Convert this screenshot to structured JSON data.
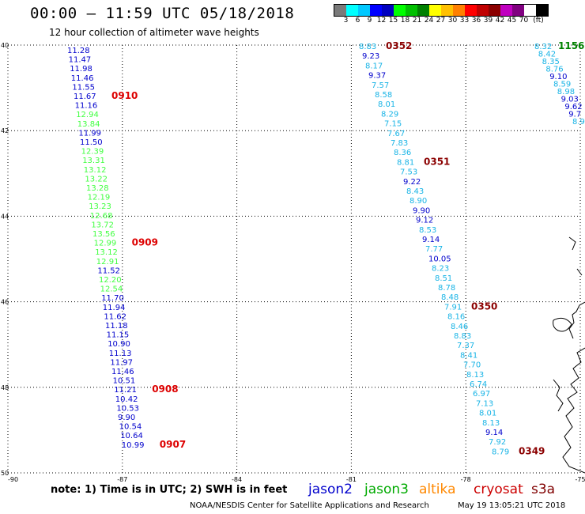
{
  "header": {
    "title": "00:00 – 11:59 UTC 05/18/2018",
    "subtitle": "12 hour collection of altimeter wave heights",
    "units": "(ft)"
  },
  "colorbar": {
    "colors": [
      "#7a7a7a",
      "#00ffff",
      "#00c8ff",
      "#0000ff",
      "#0000c0",
      "#00ff00",
      "#00c000",
      "#008000",
      "#ffff00",
      "#ffc000",
      "#ff8000",
      "#ff0000",
      "#c00000",
      "#8b0000",
      "#c000c0",
      "#800080",
      "#ffffff",
      "#000000"
    ],
    "labels": [
      "3",
      "6",
      "9",
      "12",
      "15",
      "18",
      "21",
      "24",
      "27",
      "30",
      "33",
      "36",
      "39",
      "42",
      "45",
      "70"
    ]
  },
  "map": {
    "lon_ticks": [
      "-90",
      "-87",
      "-84",
      "-81",
      "-78",
      "-75"
    ],
    "lat_ticks": [
      "40",
      "42",
      "44",
      "46",
      "48",
      "50"
    ],
    "satellite_colors": {
      "jason2": "#0000cc",
      "jason3": "#00aa00",
      "altika": "#ff8800",
      "cryosat": "#cc0000",
      "s3a": "#800000",
      "light": "#40ff40",
      "cyan": "#19b4e6"
    },
    "tracks": [
      {
        "name": "west-track",
        "points": [
          {
            "v": "11.28",
            "c": "#0000cc"
          },
          {
            "v": "11.47",
            "c": "#0000cc"
          },
          {
            "v": "11.98",
            "c": "#0000cc"
          },
          {
            "v": "11.46",
            "c": "#0000cc"
          },
          {
            "v": "11.55",
            "c": "#0000cc"
          },
          {
            "v": "11.67",
            "c": "#0000cc"
          },
          {
            "v": "11.16",
            "c": "#0000cc"
          },
          {
            "v": "12.94",
            "c": "#40ff40"
          },
          {
            "v": "13.84",
            "c": "#40ff40"
          },
          {
            "v": "11.99",
            "c": "#0000cc"
          },
          {
            "v": "11.50",
            "c": "#0000cc"
          },
          {
            "v": "12.39",
            "c": "#40ff40"
          },
          {
            "v": "13.31",
            "c": "#40ff40"
          },
          {
            "v": "13.12",
            "c": "#40ff40"
          },
          {
            "v": "13.22",
            "c": "#40ff40"
          },
          {
            "v": "13.28",
            "c": "#40ff40"
          },
          {
            "v": "12.19",
            "c": "#40ff40"
          },
          {
            "v": "13.23",
            "c": "#40ff40"
          },
          {
            "v": "12.68",
            "c": "#40ff40"
          },
          {
            "v": "13.72",
            "c": "#40ff40"
          },
          {
            "v": "13.56",
            "c": "#40ff40"
          },
          {
            "v": "12.99",
            "c": "#40ff40"
          },
          {
            "v": "13.12",
            "c": "#40ff40"
          },
          {
            "v": "12.91",
            "c": "#40ff40"
          },
          {
            "v": "11.52",
            "c": "#0000cc"
          },
          {
            "v": "12.20",
            "c": "#40ff40"
          },
          {
            "v": "12.54",
            "c": "#40ff40"
          },
          {
            "v": "11.70",
            "c": "#0000cc"
          },
          {
            "v": "11.94",
            "c": "#0000cc"
          },
          {
            "v": "11.62",
            "c": "#0000cc"
          },
          {
            "v": "11.18",
            "c": "#0000cc"
          },
          {
            "v": "11.15",
            "c": "#0000cc"
          },
          {
            "v": "10.90",
            "c": "#0000cc"
          },
          {
            "v": "11.13",
            "c": "#0000cc"
          },
          {
            "v": "11.97",
            "c": "#0000cc"
          },
          {
            "v": "11.46",
            "c": "#0000cc"
          },
          {
            "v": "10.51",
            "c": "#0000cc"
          },
          {
            "v": "11.21",
            "c": "#0000cc"
          },
          {
            "v": "10.42",
            "c": "#0000cc"
          },
          {
            "v": "10.53",
            "c": "#0000cc"
          },
          {
            "v": "9.90",
            "c": "#0000cc"
          },
          {
            "v": "10.54",
            "c": "#0000cc"
          },
          {
            "v": "10.64",
            "c": "#0000cc"
          },
          {
            "v": "10.99",
            "c": "#0000cc"
          }
        ],
        "time_labels": [
          {
            "t": "0910",
            "after": 5
          },
          {
            "t": "0909",
            "after": 21
          },
          {
            "t": "0908",
            "after": 37
          },
          {
            "t": "0907",
            "after": 43
          }
        ]
      },
      {
        "name": "east-track",
        "points": [
          {
            "v": "8.83",
            "c": "#19b4e6"
          },
          {
            "v": "9.23",
            "c": "#0000cc"
          },
          {
            "v": "8.17",
            "c": "#19b4e6"
          },
          {
            "v": "9.37",
            "c": "#0000cc"
          },
          {
            "v": "7.57",
            "c": "#19b4e6"
          },
          {
            "v": "8.58",
            "c": "#19b4e6"
          },
          {
            "v": "8.01",
            "c": "#19b4e6"
          },
          {
            "v": "8.29",
            "c": "#19b4e6"
          },
          {
            "v": "7.15",
            "c": "#19b4e6"
          },
          {
            "v": "7.67",
            "c": "#19b4e6"
          },
          {
            "v": "7.83",
            "c": "#19b4e6"
          },
          {
            "v": "8.36",
            "c": "#19b4e6"
          },
          {
            "v": "8.81",
            "c": "#19b4e6"
          },
          {
            "v": "7.53",
            "c": "#19b4e6"
          },
          {
            "v": "9.22",
            "c": "#0000cc"
          },
          {
            "v": "8.43",
            "c": "#19b4e6"
          },
          {
            "v": "8.90",
            "c": "#19b4e6"
          },
          {
            "v": "9.90",
            "c": "#0000cc"
          },
          {
            "v": "9.12",
            "c": "#0000cc"
          },
          {
            "v": "8.53",
            "c": "#19b4e6"
          },
          {
            "v": "9.14",
            "c": "#0000cc"
          },
          {
            "v": "7.77",
            "c": "#19b4e6"
          },
          {
            "v": "10.05",
            "c": "#0000cc"
          },
          {
            "v": "8.23",
            "c": "#19b4e6"
          },
          {
            "v": "8.51",
            "c": "#19b4e6"
          },
          {
            "v": "8.78",
            "c": "#19b4e6"
          },
          {
            "v": "8.48",
            "c": "#19b4e6"
          },
          {
            "v": "7.91",
            "c": "#19b4e6"
          },
          {
            "v": "8.16",
            "c": "#19b4e6"
          },
          {
            "v": "8.46",
            "c": "#19b4e6"
          },
          {
            "v": "8.83",
            "c": "#19b4e6"
          },
          {
            "v": "7.37",
            "c": "#19b4e6"
          },
          {
            "v": "8.41",
            "c": "#19b4e6"
          },
          {
            "v": "7.70",
            "c": "#19b4e6"
          },
          {
            "v": "8.13",
            "c": "#19b4e6"
          },
          {
            "v": "6.74",
            "c": "#19b4e6"
          },
          {
            "v": "6.97",
            "c": "#19b4e6"
          },
          {
            "v": "7.13",
            "c": "#19b4e6"
          },
          {
            "v": "8.01",
            "c": "#19b4e6"
          },
          {
            "v": "8.13",
            "c": "#19b4e6"
          },
          {
            "v": "9.14",
            "c": "#0000cc"
          },
          {
            "v": "7.92",
            "c": "#19b4e6"
          },
          {
            "v": "8.79",
            "c": "#19b4e6"
          }
        ],
        "time_labels": [
          {
            "t": "0352",
            "after": 0
          },
          {
            "t": "0351",
            "after": 12
          },
          {
            "t": "0350",
            "after": 27
          },
          {
            "t": "0349",
            "after": 42
          }
        ]
      },
      {
        "name": "corner-track",
        "points": [
          {
            "v": "8.32",
            "c": "#19b4e6"
          },
          {
            "v": "8.42",
            "c": "#19b4e6"
          },
          {
            "v": "8.35",
            "c": "#19b4e6"
          },
          {
            "v": "8.76",
            "c": "#19b4e6"
          },
          {
            "v": "9.10",
            "c": "#0000cc"
          },
          {
            "v": "8.59",
            "c": "#19b4e6"
          },
          {
            "v": "8.98",
            "c": "#19b4e6"
          },
          {
            "v": "9.03",
            "c": "#0000cc"
          },
          {
            "v": "9.62",
            "c": "#0000cc"
          },
          {
            "v": "9.7",
            "c": "#0000cc"
          },
          {
            "v": "8.9",
            "c": "#19b4e6"
          }
        ],
        "time_labels": [
          {
            "t": "1156",
            "after": 0
          }
        ]
      }
    ]
  },
  "note": "note:  1) Time is in UTC;  2) SWH is in feet",
  "legend": {
    "jason2": "jason2",
    "jason3": "jason3",
    "altika": "altika",
    "cryosat": "cryosat",
    "s3a": "s3a"
  },
  "credit": "NOAA/NESDIS Center for Satellite Applications and Research",
  "timestamp": "May 19 13:05:21 UTC 2018"
}
